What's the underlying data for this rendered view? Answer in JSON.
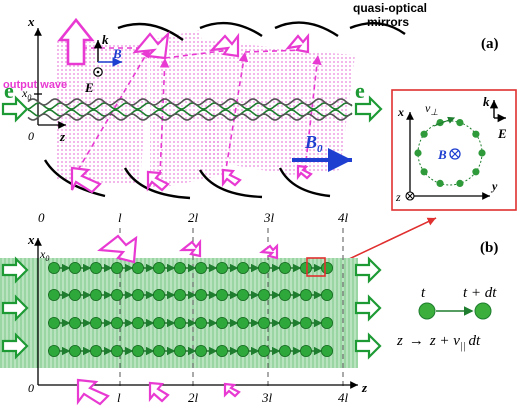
{
  "panel_a": {
    "output_wave": "output wave",
    "mirrors_line1": "quasi-optical",
    "mirrors_line2": "mirrors",
    "panel_label": "(a)",
    "k": "k",
    "B": "B",
    "E": "E",
    "x": "x",
    "x0": "x",
    "x0_sub": "0",
    "origin": "0",
    "z": "z",
    "e_left": "e",
    "e_right": "e",
    "B0": "B",
    "B0_sub": "0"
  },
  "inset": {
    "x": "x",
    "v_perp": "v",
    "v_perp_sub": "⊥",
    "k": "k",
    "B": "B",
    "E": "E",
    "z_into": "z",
    "y": "y"
  },
  "panel_b": {
    "panel_label": "(b)",
    "x": "x",
    "x0": "x",
    "x0_sub": "0",
    "origin": "0",
    "z": "z",
    "ticks": [
      "0",
      "l",
      "2l",
      "3l",
      "4l"
    ],
    "bottom_ticks": [
      "l",
      "2l",
      "3l",
      "4l"
    ],
    "legend_t": "t",
    "legend_tdt": "t + dt",
    "legend_eq_left": "z",
    "legend_eq_arrow": "→",
    "legend_eq_right": "z + v",
    "legend_eq_sub": "||",
    "legend_eq_end": "dt"
  },
  "colors": {
    "magenta": "#e83ad2",
    "green_fill": "#9fd9a7",
    "green_dark": "#1e7d2e",
    "blue": "#1f3fd0",
    "red": "#e03030"
  }
}
